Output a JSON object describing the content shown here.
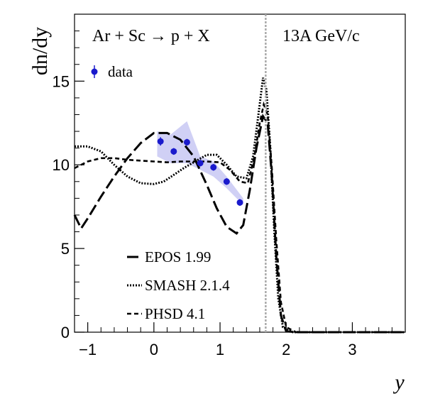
{
  "chart_data": {
    "type": "line",
    "title": "",
    "xlabel": "y",
    "ylabel": "dn/dy",
    "xlim": [
      -1.2,
      3.8
    ],
    "ylim": [
      0,
      19
    ],
    "x_ticks": [
      -1,
      0,
      1,
      2,
      3
    ],
    "y_ticks": [
      0,
      5,
      10,
      15
    ],
    "annotations": {
      "left": "Ar + Sc → p + X",
      "right": "13A GeV/c"
    },
    "beam_rapidity_line": 1.69,
    "data_series": {
      "name": "data",
      "color": "#1a1acc",
      "points": [
        {
          "x": 0.1,
          "y": 11.4,
          "err": 0.25
        },
        {
          "x": 0.3,
          "y": 10.8,
          "err": 0.2
        },
        {
          "x": 0.5,
          "y": 11.35,
          "err": 0.2
        },
        {
          "x": 0.7,
          "y": 10.1,
          "err": 0.2
        },
        {
          "x": 0.9,
          "y": 9.85,
          "err": 0.2
        },
        {
          "x": 1.1,
          "y": 9.0,
          "err": 0.2
        },
        {
          "x": 1.3,
          "y": 7.75,
          "err": 0.2
        }
      ],
      "band": [
        {
          "x": 0.05,
          "lo": 10.5,
          "hi": 12.0
        },
        {
          "x": 0.25,
          "lo": 10.1,
          "hi": 11.8
        },
        {
          "x": 0.5,
          "lo": 10.1,
          "hi": 12.6
        },
        {
          "x": 0.7,
          "lo": 9.7,
          "hi": 10.5
        },
        {
          "x": 0.9,
          "lo": 9.3,
          "hi": 10.2
        },
        {
          "x": 1.1,
          "lo": 8.6,
          "hi": 9.3
        },
        {
          "x": 1.35,
          "lo": 7.6,
          "hi": 8.0
        }
      ]
    },
    "series": [
      {
        "name": "EPOS 1.99",
        "style": "longdash",
        "points": [
          [
            -1.2,
            7.0
          ],
          [
            -1.1,
            6.2
          ],
          [
            -1.0,
            6.8
          ],
          [
            -0.8,
            8.1
          ],
          [
            -0.6,
            9.3
          ],
          [
            -0.4,
            10.4
          ],
          [
            -0.2,
            11.3
          ],
          [
            0.0,
            11.9
          ],
          [
            0.2,
            11.9
          ],
          [
            0.4,
            11.5
          ],
          [
            0.6,
            10.5
          ],
          [
            0.8,
            8.8
          ],
          [
            0.95,
            7.4
          ],
          [
            1.1,
            6.3
          ],
          [
            1.25,
            5.9
          ],
          [
            1.35,
            6.4
          ],
          [
            1.45,
            8.5
          ],
          [
            1.55,
            11.0
          ],
          [
            1.65,
            12.9
          ],
          [
            1.72,
            12.5
          ],
          [
            1.78,
            9.5
          ],
          [
            1.85,
            4.5
          ],
          [
            1.92,
            1.0
          ],
          [
            2.0,
            0.05
          ],
          [
            2.2,
            0.0
          ],
          [
            3.8,
            0.0
          ]
        ]
      },
      {
        "name": "SMASH 2.1.4",
        "style": "dotted",
        "points": [
          [
            -1.2,
            11.1
          ],
          [
            -1.0,
            11.1
          ],
          [
            -0.8,
            10.8
          ],
          [
            -0.6,
            10.0
          ],
          [
            -0.4,
            9.3
          ],
          [
            -0.2,
            8.9
          ],
          [
            0.0,
            8.85
          ],
          [
            0.15,
            9.0
          ],
          [
            0.3,
            9.4
          ],
          [
            0.45,
            9.8
          ],
          [
            0.6,
            10.15
          ],
          [
            0.8,
            10.6
          ],
          [
            0.95,
            10.6
          ],
          [
            1.1,
            10.0
          ],
          [
            1.25,
            9.3
          ],
          [
            1.4,
            9.2
          ],
          [
            1.5,
            10.5
          ],
          [
            1.58,
            13.0
          ],
          [
            1.65,
            15.2
          ],
          [
            1.7,
            14.5
          ],
          [
            1.76,
            11.0
          ],
          [
            1.82,
            6.0
          ],
          [
            1.88,
            2.0
          ],
          [
            1.95,
            0.3
          ],
          [
            2.1,
            0.0
          ],
          [
            3.8,
            0.0
          ]
        ]
      },
      {
        "name": "PHSD 4.1",
        "style": "dashed",
        "points": [
          [
            -1.2,
            9.8
          ],
          [
            -1.0,
            10.2
          ],
          [
            -0.8,
            10.4
          ],
          [
            -0.6,
            10.4
          ],
          [
            -0.4,
            10.3
          ],
          [
            -0.2,
            10.25
          ],
          [
            0.0,
            10.2
          ],
          [
            0.2,
            10.15
          ],
          [
            0.4,
            10.2
          ],
          [
            0.6,
            10.2
          ],
          [
            0.8,
            10.2
          ],
          [
            1.0,
            10.15
          ],
          [
            1.15,
            9.7
          ],
          [
            1.3,
            9.0
          ],
          [
            1.42,
            8.9
          ],
          [
            1.52,
            10.5
          ],
          [
            1.6,
            12.5
          ],
          [
            1.66,
            13.6
          ],
          [
            1.72,
            13.0
          ],
          [
            1.78,
            10.0
          ],
          [
            1.85,
            5.5
          ],
          [
            1.92,
            1.8
          ],
          [
            2.0,
            0.3
          ],
          [
            2.15,
            0.0
          ],
          [
            3.8,
            0.0
          ]
        ]
      }
    ],
    "legend": {
      "data_label": "data",
      "entries": [
        "EPOS 1.99",
        "SMASH 2.1.4",
        "PHSD 4.1"
      ],
      "placement": "bottom-left"
    },
    "grid": false
  }
}
